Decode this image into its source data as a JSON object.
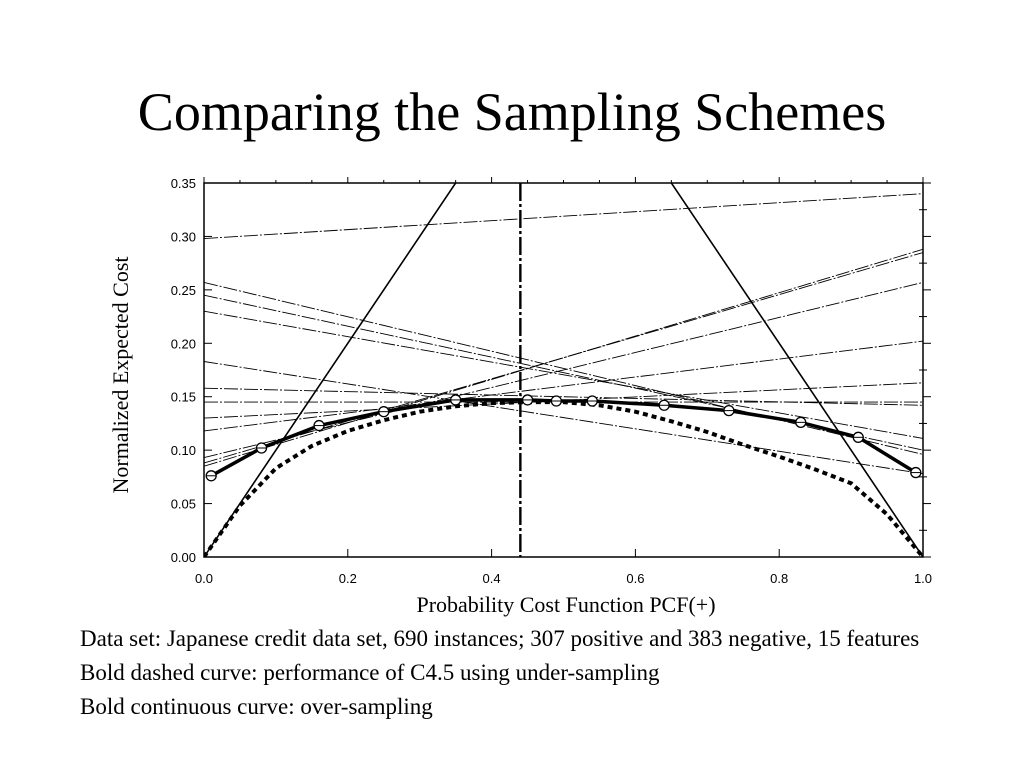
{
  "slide": {
    "title": "Comparing the Sampling Schemes",
    "captions": [
      "Data set: Japanese credit data set, 690 instances; 307 positive and 383 negative, 15 features",
      "Bold dashed curve: performance of C4.5 using under-sampling",
      "Bold continuous curve: over-sampling"
    ]
  },
  "chart_data": {
    "type": "line",
    "title": "",
    "xlabel": "Probability Cost Function PCF(+)",
    "ylabel": "Normalized Expected Cost",
    "xlim": [
      0,
      1
    ],
    "ylim": [
      0,
      0.35
    ],
    "x_ticks": [
      0.0,
      0.2,
      0.4,
      0.6,
      0.8,
      1.0
    ],
    "x_tick_labels": [
      "0.0",
      "0.2",
      "0.4",
      "0.6",
      "0.8",
      "1.0"
    ],
    "y_ticks": [
      0.0,
      0.05,
      0.1,
      0.15,
      0.2,
      0.25,
      0.3,
      0.35
    ],
    "y_tick_labels": [
      "0.00",
      "0.05",
      "0.10",
      "0.15",
      "0.20",
      "0.25",
      "0.30",
      "0.35"
    ],
    "vertical_marker_x": 0.44,
    "trivial_classifiers": [
      {
        "x": [
          0,
          1
        ],
        "y": [
          0,
          1
        ]
      },
      {
        "x": [
          0,
          1
        ],
        "y": [
          1,
          0
        ]
      }
    ],
    "cost_lines": [
      {
        "x": [
          0,
          1
        ],
        "y": [
          0.298,
          0.34
        ]
      },
      {
        "x": [
          0,
          1
        ],
        "y": [
          0.257,
          0.096
        ]
      },
      {
        "x": [
          0,
          1
        ],
        "y": [
          0.245,
          0.1
        ]
      },
      {
        "x": [
          0,
          1
        ],
        "y": [
          0.23,
          0.111
        ]
      },
      {
        "x": [
          0,
          1
        ],
        "y": [
          0.183,
          0.078
        ]
      },
      {
        "x": [
          0,
          1
        ],
        "y": [
          0.158,
          0.142
        ]
      },
      {
        "x": [
          0,
          1
        ],
        "y": [
          0.145,
          0.145
        ]
      },
      {
        "x": [
          0,
          1
        ],
        "y": [
          0.13,
          0.163
        ]
      },
      {
        "x": [
          0,
          1
        ],
        "y": [
          0.118,
          0.202
        ]
      },
      {
        "x": [
          0,
          1
        ],
        "y": [
          0.093,
          0.257
        ]
      },
      {
        "x": [
          0,
          1
        ],
        "y": [
          0.088,
          0.285
        ]
      },
      {
        "x": [
          0,
          1
        ],
        "y": [
          0.085,
          0.288
        ]
      }
    ],
    "series": [
      {
        "style": "bold-dashed",
        "x": [
          0.0,
          0.05,
          0.1,
          0.15,
          0.2,
          0.25,
          0.3,
          0.35,
          0.4,
          0.45,
          0.5,
          0.55,
          0.6,
          0.65,
          0.7,
          0.75,
          0.8,
          0.85,
          0.9,
          0.95,
          1.0
        ],
        "y": [
          0.0,
          0.048,
          0.083,
          0.104,
          0.118,
          0.128,
          0.136,
          0.141,
          0.144,
          0.145,
          0.145,
          0.142,
          0.136,
          0.127,
          0.117,
          0.105,
          0.094,
          0.082,
          0.069,
          0.04,
          0.0
        ]
      },
      {
        "style": "bold-solid",
        "markers": true,
        "x": [
          0.01,
          0.08,
          0.16,
          0.25,
          0.35,
          0.45,
          0.49,
          0.54,
          0.64,
          0.73,
          0.83,
          0.91,
          0.99
        ],
        "y": [
          0.076,
          0.102,
          0.123,
          0.136,
          0.147,
          0.147,
          0.146,
          0.146,
          0.142,
          0.137,
          0.126,
          0.112,
          0.079
        ]
      }
    ],
    "grid": false,
    "legend": "none"
  }
}
